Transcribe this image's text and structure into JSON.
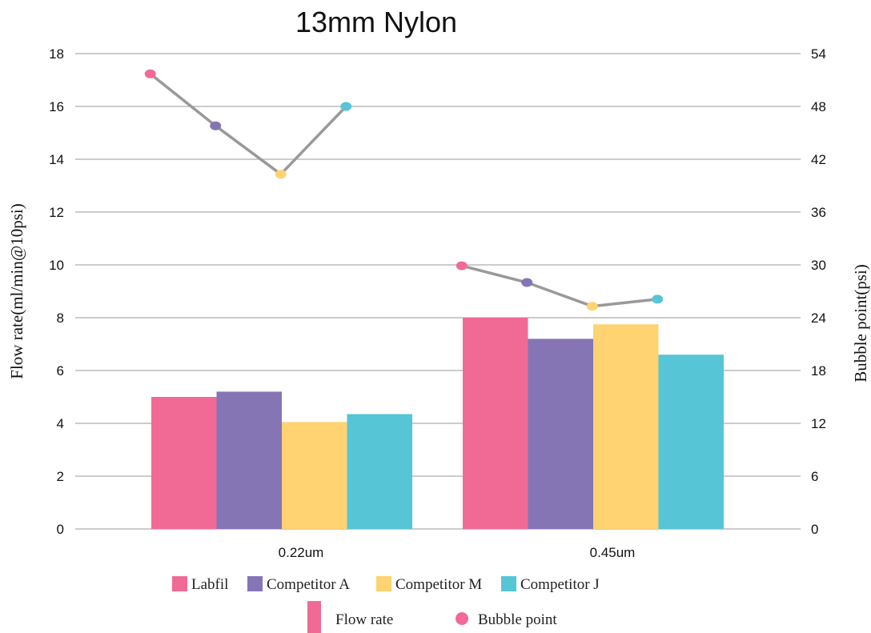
{
  "chart_data": {
    "type": "bar",
    "title": "13mm Nylon",
    "categories": [
      "0.22um",
      "0.45um"
    ],
    "ylabel": "Flow rate(ml/min@10psi)",
    "y2label": "Bubble point(psi)",
    "ylim": [
      0,
      18
    ],
    "y2lim": [
      0,
      54
    ],
    "yticks": [
      "0",
      "2",
      "4",
      "6",
      "8",
      "10",
      "12",
      "14",
      "16",
      "18"
    ],
    "y2ticks": [
      "0",
      "6",
      "12",
      "18",
      "24",
      "30",
      "36",
      "42",
      "48",
      "54"
    ],
    "grid": true,
    "legend_position": "bottom",
    "series": [
      {
        "name": "Labfil",
        "color": "#F06A95",
        "flow_rate": [
          5.0,
          8.0
        ],
        "bubble_point": [
          51.7,
          29.9
        ]
      },
      {
        "name": "Competitor A",
        "color": "#8575B5",
        "flow_rate": [
          5.2,
          7.2
        ],
        "bubble_point": [
          45.8,
          28.0
        ]
      },
      {
        "name": "Competitor M",
        "color": "#FFD272",
        "flow_rate": [
          4.05,
          7.75
        ],
        "bubble_point": [
          40.3,
          25.3
        ]
      },
      {
        "name": "Competitor J",
        "color": "#56C5D6",
        "flow_rate": [
          4.35,
          6.6
        ],
        "bubble_point": [
          48.0,
          26.1
        ]
      }
    ],
    "type_legend": {
      "flow_rate": "Flow rate",
      "bubble_point": "Bubble point"
    },
    "connector_color": "#999999",
    "grid_color": "#9a9a9a"
  }
}
